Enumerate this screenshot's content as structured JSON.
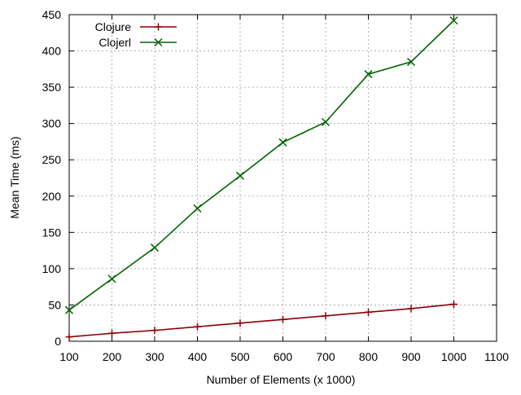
{
  "chart_data": {
    "type": "line",
    "xlabel": "Number of Elements (x 1000)",
    "ylabel": "Mean Time (ms)",
    "xlim": [
      100,
      1100
    ],
    "ylim": [
      0,
      450
    ],
    "xticks": [
      100,
      200,
      300,
      400,
      500,
      600,
      700,
      800,
      900,
      1000,
      1100
    ],
    "yticks": [
      0,
      50,
      100,
      150,
      200,
      250,
      300,
      350,
      400,
      450
    ],
    "grid": true,
    "legend_position": "top-left",
    "x": [
      100,
      200,
      300,
      400,
      500,
      600,
      700,
      800,
      900,
      1000
    ],
    "series": [
      {
        "name": "Clojure",
        "color": "#8b0000",
        "marker": "plus",
        "values": [
          6,
          11,
          15,
          20,
          25,
          30,
          35,
          40,
          45,
          51
        ]
      },
      {
        "name": "Clojerl",
        "color": "#006400",
        "marker": "cross",
        "values": [
          43,
          86,
          129,
          183,
          228,
          274,
          302,
          368,
          385,
          442
        ]
      }
    ]
  }
}
